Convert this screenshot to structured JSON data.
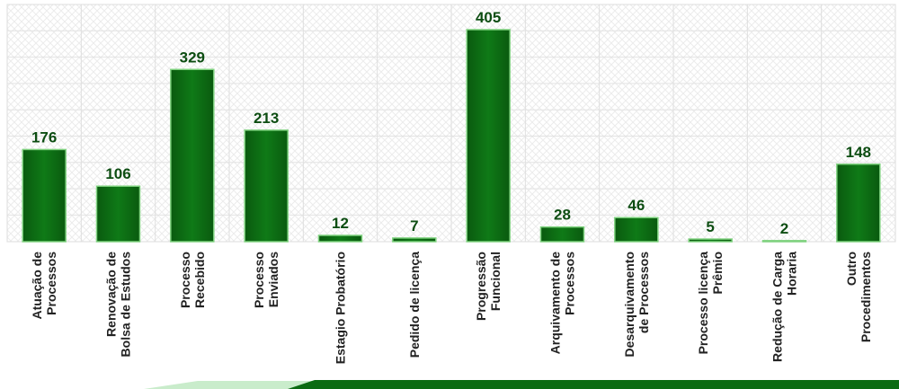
{
  "chart_data": {
    "type": "bar",
    "categories": [
      "Atuação de\nProcessos",
      "Renovação de\nBolsa de Estudos",
      "Processo\nRecebido",
      "Processo\nEnviados",
      "Estagio Probatório",
      "Pedido de licença",
      "Progressão\nFuncional",
      "Arquivamento de\nProcessos",
      "Desarquivamento\nde Processos",
      "Processo licença\nPrêmio",
      "Redução de Carga\nHoraria",
      "Outro\nProcedimentos"
    ],
    "values": [
      176,
      106,
      329,
      213,
      12,
      7,
      405,
      28,
      46,
      5,
      2,
      148
    ],
    "color": "#0b6b12"
  }
}
